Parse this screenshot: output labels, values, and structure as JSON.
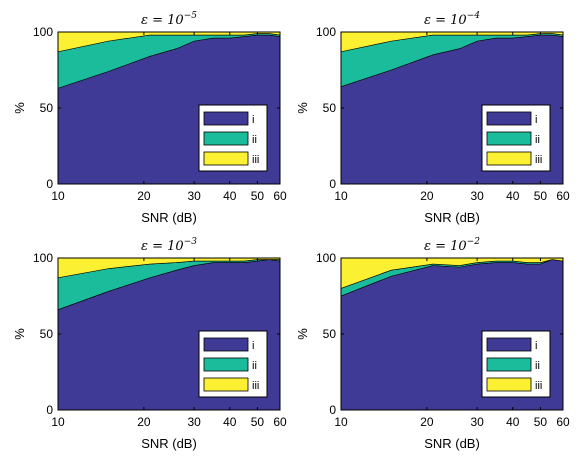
{
  "chart_data": [
    {
      "type": "area",
      "title": {
        "base": "ε = 10",
        "exp": "−5"
      },
      "xlabel": "SNR (dB)",
      "ylabel": "%",
      "xscale": "log",
      "xlim": [
        10,
        60
      ],
      "ylim": [
        0,
        100
      ],
      "xticks": [
        10,
        20,
        30,
        40,
        50,
        60
      ],
      "xtick_labels": [
        "10",
        "20",
        "30",
        "40",
        "50",
        "60"
      ],
      "yticks": [
        0,
        50,
        100
      ],
      "ytick_labels": [
        "0",
        "50",
        "100"
      ],
      "stacked": true,
      "legend_position": "bottom-right",
      "x": [
        10,
        15,
        21,
        26,
        30,
        35,
        40,
        45,
        50,
        55,
        60
      ],
      "series": [
        {
          "name": "i",
          "color": "#3f3a96",
          "values": [
            63,
            74,
            84,
            89,
            94,
            96,
            96,
            97,
            98,
            98,
            97
          ]
        },
        {
          "name": "ii",
          "color": "#1bbc9b",
          "values": [
            24,
            20,
            14,
            9,
            4,
            2,
            2,
            1,
            1,
            1,
            1
          ]
        },
        {
          "name": "iii",
          "color": "#fbf032",
          "values": [
            13,
            6,
            2,
            2,
            2,
            2,
            2,
            2,
            1,
            1,
            2
          ]
        }
      ]
    },
    {
      "type": "area",
      "title": {
        "base": "ε = 10",
        "exp": "−4"
      },
      "xlabel": "SNR (dB)",
      "ylabel": "%",
      "xscale": "log",
      "xlim": [
        10,
        60
      ],
      "ylim": [
        0,
        100
      ],
      "xticks": [
        10,
        20,
        30,
        40,
        50,
        60
      ],
      "xtick_labels": [
        "10",
        "20",
        "30",
        "40",
        "50",
        "60"
      ],
      "yticks": [
        0,
        50,
        100
      ],
      "ytick_labels": [
        "0",
        "50",
        "100"
      ],
      "stacked": true,
      "legend_position": "bottom-right",
      "x": [
        10,
        15,
        21,
        26,
        30,
        35,
        40,
        45,
        50,
        55,
        60
      ],
      "series": [
        {
          "name": "i",
          "color": "#3f3a96",
          "values": [
            64,
            75,
            85,
            89,
            94,
            96,
            96,
            97,
            98,
            98,
            97
          ]
        },
        {
          "name": "ii",
          "color": "#1bbc9b",
          "values": [
            23,
            19,
            13,
            9,
            4,
            2,
            2,
            1,
            1,
            1,
            1
          ]
        },
        {
          "name": "iii",
          "color": "#fbf032",
          "values": [
            13,
            6,
            2,
            2,
            2,
            2,
            2,
            2,
            1,
            1,
            2
          ]
        }
      ]
    },
    {
      "type": "area",
      "title": {
        "base": "ε = 10",
        "exp": "−3"
      },
      "xlabel": "SNR (dB)",
      "ylabel": "%",
      "xscale": "log",
      "xlim": [
        10,
        60
      ],
      "ylim": [
        0,
        100
      ],
      "xticks": [
        10,
        20,
        30,
        40,
        50,
        60
      ],
      "xtick_labels": [
        "10",
        "20",
        "30",
        "40",
        "50",
        "60"
      ],
      "yticks": [
        0,
        50,
        100
      ],
      "ytick_labels": [
        "0",
        "50",
        "100"
      ],
      "stacked": true,
      "legend_position": "bottom-right",
      "x": [
        10,
        15,
        21,
        26,
        30,
        35,
        40,
        45,
        50,
        55,
        60
      ],
      "series": [
        {
          "name": "i",
          "color": "#3f3a96",
          "values": [
            66,
            78,
            87,
            92,
            95,
            97,
            97,
            97,
            98,
            99,
            98
          ]
        },
        {
          "name": "ii",
          "color": "#1bbc9b",
          "values": [
            21,
            15,
            9,
            5,
            3,
            1,
            1,
            1,
            1,
            0,
            1
          ]
        },
        {
          "name": "iii",
          "color": "#fbf032",
          "values": [
            13,
            7,
            4,
            3,
            2,
            2,
            2,
            2,
            1,
            1,
            1
          ]
        }
      ]
    },
    {
      "type": "area",
      "title": {
        "base": "ε = 10",
        "exp": "−2"
      },
      "xlabel": "SNR (dB)",
      "ylabel": "%",
      "xscale": "log",
      "xlim": [
        10,
        60
      ],
      "ylim": [
        0,
        100
      ],
      "xticks": [
        10,
        20,
        30,
        40,
        50,
        60
      ],
      "xtick_labels": [
        "10",
        "20",
        "30",
        "40",
        "50",
        "60"
      ],
      "yticks": [
        0,
        50,
        100
      ],
      "ytick_labels": [
        "0",
        "50",
        "100"
      ],
      "stacked": true,
      "legend_position": "bottom-right",
      "x": [
        10,
        15,
        21,
        26,
        30,
        35,
        40,
        45,
        50,
        55,
        60
      ],
      "series": [
        {
          "name": "i",
          "color": "#3f3a96",
          "values": [
            75,
            88,
            95,
            94,
            96,
            97,
            97,
            96,
            96,
            99,
            98
          ]
        },
        {
          "name": "ii",
          "color": "#1bbc9b",
          "values": [
            5,
            4,
            1,
            1,
            1,
            1,
            1,
            1,
            1,
            0,
            0
          ]
        },
        {
          "name": "iii",
          "color": "#fbf032",
          "values": [
            20,
            8,
            4,
            5,
            3,
            2,
            2,
            3,
            3,
            1,
            2
          ]
        }
      ]
    }
  ]
}
